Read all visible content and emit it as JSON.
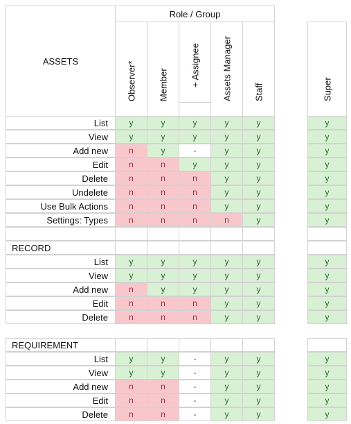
{
  "header": {
    "role_group": "Role / Group",
    "assets_title": "ASSETS",
    "columns": [
      "Observer*",
      "Member",
      "+ Assignee",
      "Assets Manager",
      "Staff"
    ],
    "super": "Super"
  },
  "assets": {
    "rows": [
      {
        "label": "List",
        "values": [
          "y",
          "y",
          "y",
          "y",
          "y"
        ],
        "super": "y"
      },
      {
        "label": "View",
        "values": [
          "y",
          "y",
          "y",
          "y",
          "y"
        ],
        "super": "y"
      },
      {
        "label": "Add new",
        "values": [
          "n",
          "y",
          "-",
          "y",
          "y"
        ],
        "super": "y"
      },
      {
        "label": "Edit",
        "values": [
          "n",
          "n",
          "y",
          "y",
          "y"
        ],
        "super": "y"
      },
      {
        "label": "Delete",
        "values": [
          "n",
          "n",
          "n",
          "y",
          "y"
        ],
        "super": "y"
      },
      {
        "label": "Undelete",
        "values": [
          "n",
          "n",
          "n",
          "y",
          "y"
        ],
        "super": "y"
      },
      {
        "label": "Use Bulk Actions",
        "values": [
          "n",
          "n",
          "n",
          "y",
          "y"
        ],
        "super": "y"
      },
      {
        "label": "Settings: Types",
        "values": [
          "n",
          "n",
          "n",
          "n",
          "y"
        ],
        "super": "y"
      }
    ]
  },
  "record": {
    "title": "RECORD",
    "rows": [
      {
        "label": "List",
        "values": [
          "y",
          "y",
          "y",
          "y",
          "y"
        ],
        "super": "y"
      },
      {
        "label": "View",
        "values": [
          "y",
          "y",
          "y",
          "y",
          "y"
        ],
        "super": "y"
      },
      {
        "label": "Add new",
        "values": [
          "n",
          "y",
          "y",
          "y",
          "y"
        ],
        "super": "y"
      },
      {
        "label": "Edit",
        "values": [
          "n",
          "n",
          "n",
          "y",
          "y"
        ],
        "super": "y"
      },
      {
        "label": "Delete",
        "values": [
          "n",
          "n",
          "n",
          "y",
          "y"
        ],
        "super": "y"
      }
    ]
  },
  "requirement": {
    "title": "REQUIREMENT",
    "rows": [
      {
        "label": "List",
        "values": [
          "y",
          "y",
          "-",
          "y",
          "y"
        ],
        "super": "y"
      },
      {
        "label": "View",
        "values": [
          "y",
          "y",
          "-",
          "y",
          "y"
        ],
        "super": "y"
      },
      {
        "label": "Add new",
        "values": [
          "n",
          "n",
          "-",
          "y",
          "y"
        ],
        "super": "y"
      },
      {
        "label": "Edit",
        "values": [
          "n",
          "n",
          "-",
          "y",
          "y"
        ],
        "super": "y"
      },
      {
        "label": "Delete",
        "values": [
          "n",
          "n",
          "-",
          "y",
          "y"
        ],
        "super": "y"
      }
    ]
  },
  "colors": {
    "yes_bg": "#d8f0d3",
    "no_bg": "#f8c7cc",
    "border": "#d2d2d2"
  }
}
